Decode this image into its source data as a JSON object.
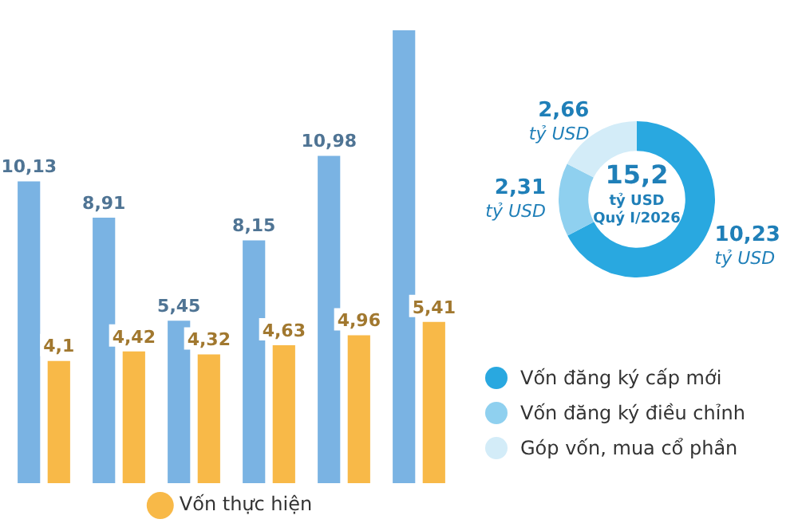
{
  "chart_data": [
    {
      "type": "bar",
      "categories": [
        null,
        null,
        null,
        null,
        null,
        null
      ],
      "tick_labels": false,
      "legend": "bottom",
      "series": [
        {
          "color": "#7ab3e3",
          "values": [
            10.13,
            8.91,
            5.45,
            8.15,
            10.98,
            15.2
          ],
          "value_labels": [
            "10,13",
            "8,91",
            "5,45",
            "8,15",
            "10,98",
            null
          ]
        },
        {
          "name": "Vốn thực hiện",
          "color": "#f8b948",
          "values": [
            4.1,
            4.42,
            4.32,
            4.63,
            4.96,
            5.41
          ],
          "value_labels": [
            "4,1",
            "4,42",
            "4,32",
            "4,63",
            "4,96",
            "5,41"
          ]
        }
      ]
    },
    {
      "type": "donut",
      "categories": [
        "Vốn đăng ký cấp mới",
        "Vốn đăng ký điều chỉnh",
        "Góp vốn, mua cổ phần"
      ],
      "values": [
        10.23,
        2.31,
        2.66
      ],
      "colors": [
        "#29a8e0",
        "#8fd0ef",
        "#d3ecf8"
      ],
      "value_labels": [
        "10,23 tỷ USD",
        "2,31 tỷ USD",
        "2,66 tỷ USD"
      ],
      "annotations": [
        "15,2",
        "tỷ USD",
        "Quý I/2026"
      ],
      "legend": "bottom"
    }
  ]
}
